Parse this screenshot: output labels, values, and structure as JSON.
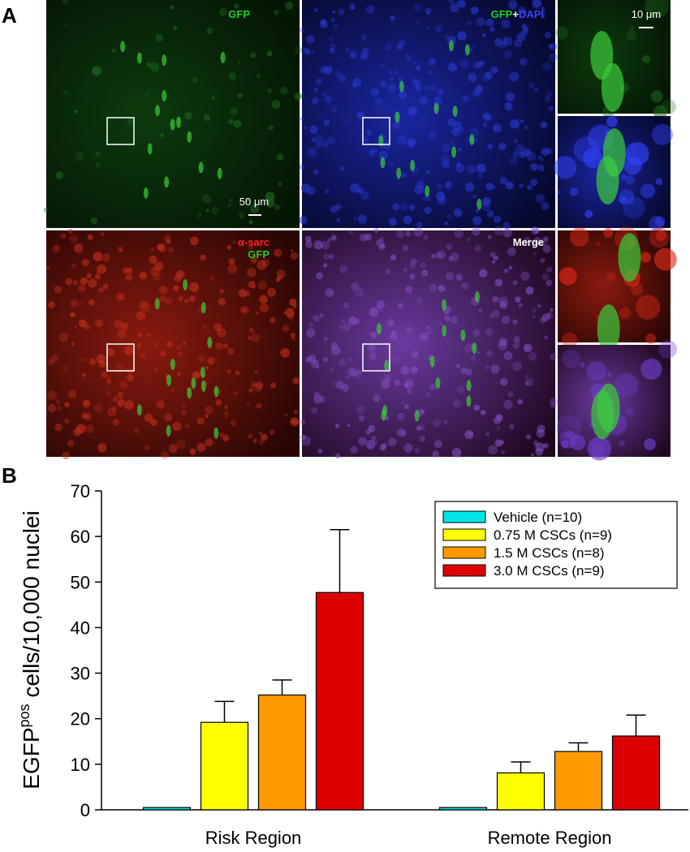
{
  "panel_a": {
    "label": "A",
    "gfp": "GFP",
    "merge_top": {
      "gfp": "GFP",
      "plus": "+",
      "dapi": "DAPI"
    },
    "scale_large": "50 μm",
    "scale_small": "10 μm",
    "sarc": {
      "alpha_sarc": "α-sarc",
      "gfp": "GFP"
    },
    "merge": "Merge"
  },
  "panel_b": {
    "label": "B"
  },
  "chart_data": {
    "type": "bar",
    "y_label": {
      "main": "EGFP",
      "sup": "pos",
      "rest": " cells/10,000 nuclei"
    },
    "categories": [
      "Risk Region",
      "Remote Region"
    ],
    "series": [
      {
        "name": "Vehicle (n=10)",
        "color": "#00e5e5",
        "values": [
          0.5,
          0.5
        ],
        "errors": [
          0,
          0
        ]
      },
      {
        "name": "0.75 M CSCs (n=9)",
        "color": "#ffff00",
        "values": [
          19.2,
          8.1
        ],
        "errors": [
          4.6,
          2.4
        ]
      },
      {
        "name": "1.5 M CSCs (n=8)",
        "color": "#ff9900",
        "values": [
          25.2,
          12.8
        ],
        "errors": [
          3.3,
          1.9
        ]
      },
      {
        "name": "3.0 M CSCs (n=9)",
        "color": "#dd0000",
        "values": [
          47.7,
          16.2
        ],
        "errors": [
          13.8,
          4.6
        ]
      }
    ],
    "ylim": [
      0,
      70
    ],
    "yticks": [
      0,
      10,
      20,
      30,
      40,
      50,
      60,
      70
    ],
    "legend": "upper right"
  }
}
